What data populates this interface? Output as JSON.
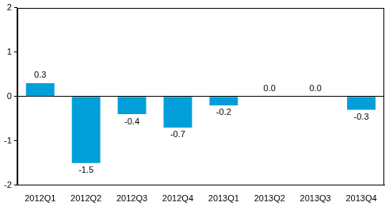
{
  "chart_data": {
    "type": "bar",
    "categories": [
      "2012Q1",
      "2012Q2",
      "2012Q3",
      "2012Q4",
      "2013Q1",
      "2013Q2",
      "2013Q3",
      "2013Q4"
    ],
    "values": [
      0.3,
      -1.5,
      -0.4,
      -0.7,
      -0.2,
      0.0,
      0.0,
      -0.3
    ],
    "value_labels": [
      "0.3",
      "-1.5",
      "-0.4",
      "-0.7",
      "-0.2",
      "0.0",
      "0.0",
      "-0.3"
    ],
    "color": "#009fda",
    "ylim": [
      -2,
      2
    ],
    "yticks": [
      -2,
      -1,
      0,
      1,
      2
    ],
    "grid": false,
    "data_labels": true
  }
}
